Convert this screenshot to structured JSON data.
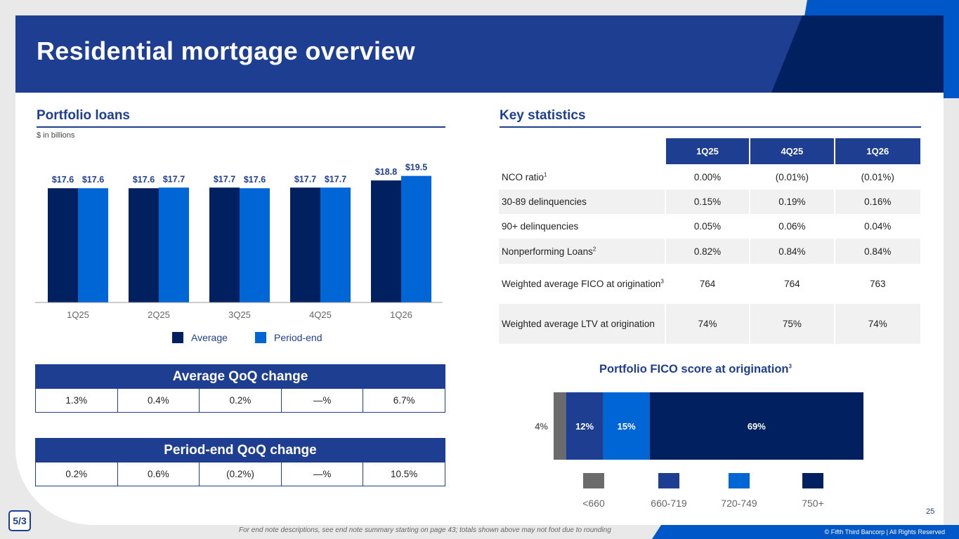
{
  "header": {
    "title": "Residential mortgage overview"
  },
  "portfolio": {
    "title": "Portfolio loans",
    "units": "$ in billions",
    "legend": {
      "average": "Average",
      "period_end": "Period-end"
    },
    "chart_data": {
      "type": "bar",
      "categories": [
        "1Q25",
        "2Q25",
        "3Q25",
        "4Q25",
        "1Q26"
      ],
      "series": [
        {
          "name": "Average",
          "values": [
            17.6,
            17.6,
            17.7,
            17.7,
            18.8
          ],
          "labels": [
            "$17.6",
            "$17.6",
            "$17.7",
            "$17.7",
            "$18.8"
          ],
          "color": "#012060"
        },
        {
          "name": "Period-end",
          "values": [
            17.6,
            17.7,
            17.6,
            17.7,
            19.5
          ],
          "labels": [
            "$17.6",
            "$17.7",
            "$17.6",
            "$17.7",
            "$19.5"
          ],
          "color": "#0066d6"
        }
      ],
      "title": "",
      "xlabel": "",
      "ylabel": "",
      "grid": false,
      "legend_position": "bottom"
    }
  },
  "average_qoq": {
    "title": "Average QoQ change",
    "values": [
      "1.3%",
      "0.4%",
      "0.2%",
      "—%",
      "6.7%"
    ]
  },
  "period_end_qoq": {
    "title": "Period-end QoQ change",
    "values": [
      "0.2%",
      "0.6%",
      "(0.2%)",
      "—%",
      "10.5%"
    ]
  },
  "key_statistics": {
    "title": "Key statistics",
    "columns": [
      "1Q25",
      "4Q25",
      "1Q26"
    ],
    "rows": [
      {
        "label": "NCO ratio",
        "sup": "1",
        "values": [
          "0.00%",
          "(0.01%)",
          "(0.01%)"
        ]
      },
      {
        "label": "30-89 delinquencies",
        "sup": "",
        "values": [
          "0.15%",
          "0.19%",
          "0.16%"
        ]
      },
      {
        "label": "90+ delinquencies",
        "sup": "",
        "values": [
          "0.05%",
          "0.06%",
          "0.04%"
        ]
      },
      {
        "label": "Nonperforming Loans",
        "sup": "2",
        "values": [
          "0.82%",
          "0.84%",
          "0.84%"
        ]
      },
      {
        "label": "Weighted average FICO at origination",
        "sup": "3",
        "values": [
          "764",
          "764",
          "763"
        ]
      },
      {
        "label": "Weighted average LTV at origination",
        "sup": "",
        "values": [
          "74%",
          "75%",
          "74%"
        ]
      }
    ]
  },
  "fico": {
    "title": "Portfolio FICO score at origination",
    "title_sup": "3",
    "chart_data": {
      "type": "bar",
      "orientation": "horizontal-stacked",
      "categories": [
        "<660",
        "660-719",
        "720-749",
        "750+"
      ],
      "values": [
        4,
        12,
        15,
        69
      ],
      "labels": [
        "4%",
        "12%",
        "15%",
        "69%"
      ],
      "colors": [
        "#6b6b6b",
        "#1e3f91",
        "#0066d6",
        "#012060"
      ],
      "legend_position": "bottom"
    }
  },
  "footer": {
    "note": "For end note descriptions, see end note summary starting on page 43; totals shown above may not foot due to rounding",
    "copyright": "© Fifth Third Bancorp | All Rights Reserved",
    "page_number": "25",
    "logo_text": "5/3"
  }
}
